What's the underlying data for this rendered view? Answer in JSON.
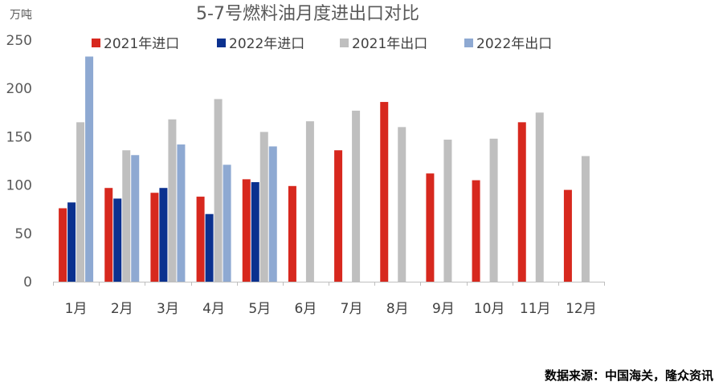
{
  "chart_data": {
    "type": "bar",
    "title": "5-7号燃料油月度进出口对比",
    "unit": "万吨",
    "source": "数据来源：中国海关，隆众资讯",
    "categories": [
      "1月",
      "2月",
      "3月",
      "4月",
      "5月",
      "6月",
      "7月",
      "8月",
      "9月",
      "10月",
      "11月",
      "12月"
    ],
    "ylim": [
      0,
      250
    ],
    "yticks": [
      0,
      50,
      100,
      150,
      200,
      250
    ],
    "grid": false,
    "legend_position": "top",
    "series": [
      {
        "name": "2021年进口",
        "color": "#d7281e",
        "values": [
          76,
          97,
          92,
          88,
          106,
          99,
          136,
          186,
          112,
          105,
          165,
          95
        ]
      },
      {
        "name": "2022年进口",
        "color": "#0b318f",
        "values": [
          82,
          86,
          97,
          70,
          103,
          null,
          null,
          null,
          null,
          null,
          null,
          null
        ]
      },
      {
        "name": "2021年出口",
        "color": "#bfbfbf",
        "values": [
          165,
          136,
          168,
          189,
          155,
          166,
          177,
          160,
          147,
          148,
          175,
          130
        ]
      },
      {
        "name": "2022年出口",
        "color": "#8ea9d2",
        "values": [
          233,
          131,
          142,
          121,
          140,
          null,
          null,
          null,
          null,
          null,
          null,
          null
        ]
      }
    ]
  }
}
